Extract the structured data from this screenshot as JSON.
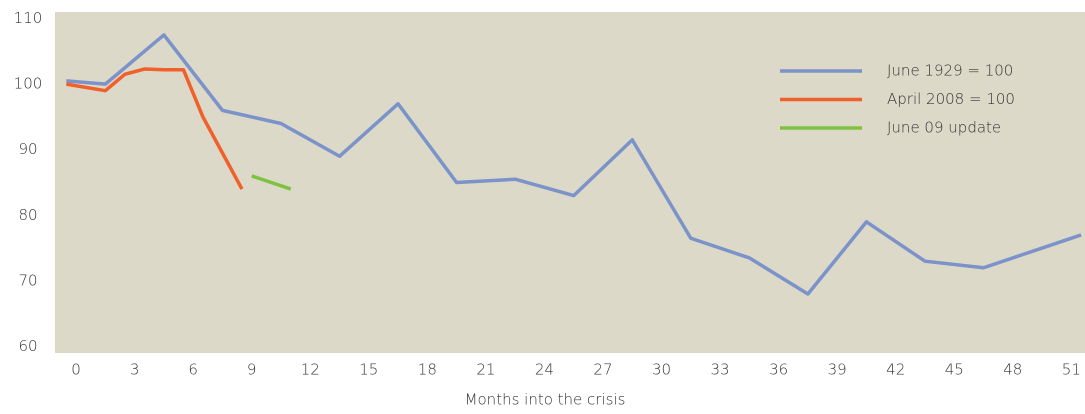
{
  "chart_data": {
    "type": "line",
    "x_label": "Months into the crisis",
    "xlim": [
      -1.08,
      51.7
    ],
    "xticks": [
      0,
      3,
      6,
      9,
      12,
      15,
      18,
      21,
      24,
      27,
      30,
      33,
      36,
      39,
      42,
      45,
      48,
      51
    ],
    "ylim": [
      59,
      111
    ],
    "yticks": [
      60,
      70,
      80,
      90,
      100,
      110
    ],
    "legend": "upper right",
    "series": [
      {
        "name": "June 1929 = 100",
        "color": "#7b93c9",
        "x": [
          -0.5,
          1.5,
          4.5,
          7.5,
          10.5,
          13.5,
          16.5,
          19.5,
          22.5,
          25.5,
          28.5,
          31.5,
          34.5,
          37.5,
          40.5,
          43.5,
          46.5,
          49.5,
          51.5
        ],
        "values": [
          100.5,
          100,
          107.5,
          96,
          94,
          89,
          97,
          85,
          85.5,
          83,
          91.5,
          76.5,
          73.5,
          68,
          79,
          73,
          72,
          75,
          77
        ]
      },
      {
        "name": "April 2008 = 100",
        "color": "#f0602a",
        "x": [
          -0.5,
          1.5,
          2.5,
          3.5,
          4.5,
          5.5,
          6.5,
          7.5,
          8.5
        ],
        "values": [
          100,
          99,
          101.5,
          102.3,
          102.2,
          102.2,
          95,
          89.5,
          84
        ]
      },
      {
        "name": "June 09 update",
        "color": "#7fc241",
        "x": [
          9,
          11
        ],
        "values": [
          86,
          84
        ]
      }
    ]
  }
}
